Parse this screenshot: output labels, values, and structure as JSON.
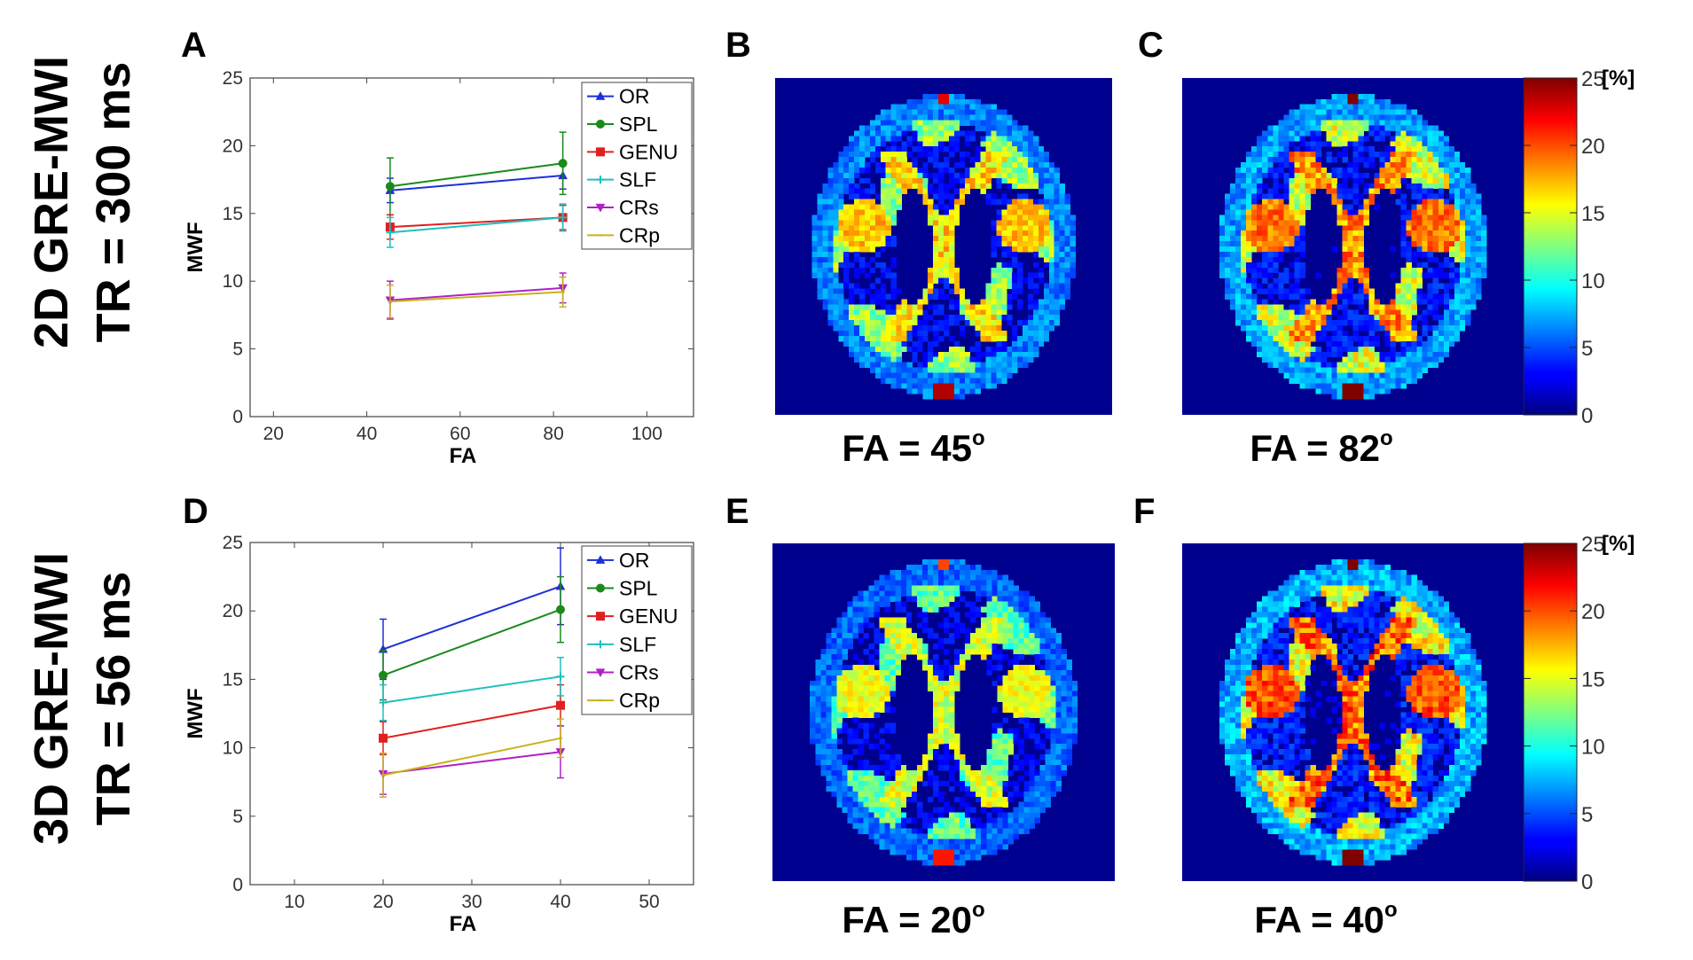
{
  "row_labels": [
    {
      "line1": "2D GRE-MWI",
      "line2": "TR = 300 ms"
    },
    {
      "line1": "3D GRE-MWI",
      "line2": "TR = 56 ms"
    }
  ],
  "panel_labels": {
    "A": "A",
    "B": "B",
    "C": "C",
    "D": "D",
    "E": "E",
    "F": "F"
  },
  "map_captions": [
    {
      "text": "FA = 45",
      "sup": "o"
    },
    {
      "text": "FA = 82",
      "sup": "o"
    },
    {
      "text": "FA = 20",
      "sup": "o"
    },
    {
      "text": "FA = 40",
      "sup": "o"
    }
  ],
  "colorbar": {
    "ticks": [
      "25",
      "20",
      "15",
      "10",
      "5",
      "0"
    ],
    "unit": "[%]",
    "colormap": "jet",
    "range": [
      0,
      25
    ]
  },
  "series_colors": {
    "OR": "#1f2fd6",
    "SPL": "#1a8a1a",
    "GENU": "#e02020",
    "SLF": "#1fbfbf",
    "CRs": "#b020c8",
    "CRp": "#c8b21a"
  },
  "chart_data": [
    {
      "type": "line",
      "panel": "A",
      "xlabel": "FA",
      "ylabel": "MWF",
      "xlim": [
        15,
        110
      ],
      "ylim": [
        0,
        25
      ],
      "xticks": [
        20,
        40,
        60,
        80,
        100
      ],
      "yticks": [
        0,
        5,
        10,
        15,
        20,
        25
      ],
      "legend": "top-right",
      "x": [
        45,
        82
      ],
      "series": [
        {
          "name": "OR",
          "values": [
            16.7,
            17.8
          ],
          "err": [
            0.9,
            1.0
          ],
          "marker": "triangle"
        },
        {
          "name": "SPL",
          "values": [
            17.0,
            18.7
          ],
          "err": [
            2.1,
            2.3
          ],
          "marker": "circle"
        },
        {
          "name": "GENU",
          "values": [
            14.0,
            14.7
          ],
          "err": [
            0.9,
            0.9
          ],
          "marker": "square"
        },
        {
          "name": "SLF",
          "values": [
            13.6,
            14.7
          ],
          "err": [
            1.1,
            1.0
          ],
          "marker": "cross"
        },
        {
          "name": "CRs",
          "values": [
            8.6,
            9.5
          ],
          "err": [
            1.4,
            1.1
          ],
          "marker": "tri-down"
        },
        {
          "name": "CRp",
          "values": [
            8.5,
            9.2
          ],
          "err": [
            1.2,
            1.1
          ],
          "marker": "none"
        }
      ]
    },
    {
      "type": "line",
      "panel": "D",
      "xlabel": "FA",
      "ylabel": "MWF",
      "xlim": [
        5,
        55
      ],
      "ylim": [
        0,
        25
      ],
      "xticks": [
        10,
        20,
        30,
        40,
        50
      ],
      "yticks": [
        0,
        5,
        10,
        15,
        20,
        25
      ],
      "legend": "top-right",
      "x": [
        20,
        40
      ],
      "series": [
        {
          "name": "OR",
          "values": [
            17.2,
            21.8
          ],
          "err": [
            2.2,
            2.8
          ],
          "marker": "triangle"
        },
        {
          "name": "SPL",
          "values": [
            15.3,
            20.1
          ],
          "err": [
            1.8,
            2.4
          ],
          "marker": "circle"
        },
        {
          "name": "GENU",
          "values": [
            10.7,
            13.1
          ],
          "err": [
            1.2,
            1.5
          ],
          "marker": "square"
        },
        {
          "name": "SLF",
          "values": [
            13.3,
            15.2
          ],
          "err": [
            1.3,
            1.4
          ],
          "marker": "cross"
        },
        {
          "name": "CRs",
          "values": [
            8.1,
            9.7
          ],
          "err": [
            1.5,
            1.9
          ],
          "marker": "tri-down"
        },
        {
          "name": "CRp",
          "values": [
            8.0,
            10.7
          ],
          "err": [
            1.6,
            1.4
          ],
          "marker": "none"
        }
      ]
    }
  ],
  "maps": [
    {
      "panel": "B",
      "intensity": 1.0,
      "seed": 11
    },
    {
      "panel": "C",
      "intensity": 1.12,
      "seed": 23
    },
    {
      "panel": "E",
      "intensity": 0.9,
      "seed": 37
    },
    {
      "panel": "F",
      "intensity": 1.18,
      "seed": 53
    }
  ]
}
